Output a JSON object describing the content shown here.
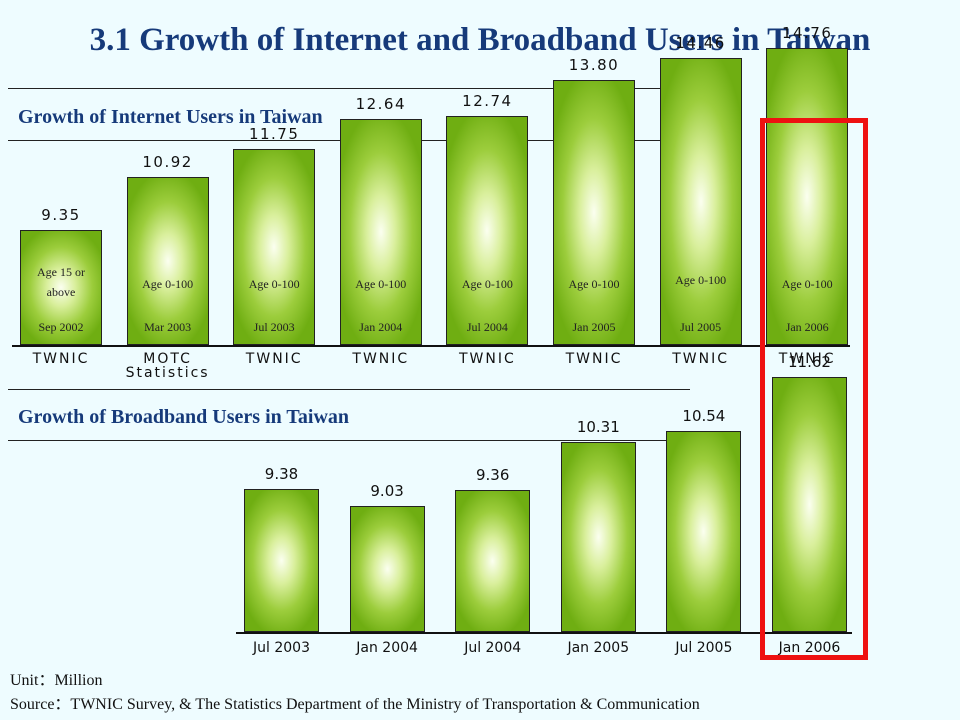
{
  "title": "3.1 Growth of Internet and Broadband Users in Taiwan",
  "chart_data": [
    {
      "type": "bar",
      "title": "Growth of Internet Users in Taiwan",
      "values": [
        9.35,
        10.92,
        11.75,
        12.64,
        12.74,
        13.8,
        14.46,
        14.76
      ],
      "value_labels": [
        "9.35",
        "10.92",
        "11.75",
        "12.64",
        "12.74",
        "13.80",
        "14.46",
        "14.76"
      ],
      "ages": [
        "Age 15 or above",
        "Age 0-100",
        "Age 0-100",
        "Age 0-100",
        "Age 0-100",
        "Age 0-100",
        "Age 0-100",
        "Age 0-100"
      ],
      "categories": [
        "Sep 2002",
        "Mar 2003",
        "Jul 2003",
        "Jan 2004",
        "Jul 2004",
        "Jan 2005",
        "Jul 2005",
        "Jan 2006"
      ],
      "sources": [
        "TWNIC",
        "MOTC Statistics",
        "TWNIC",
        "TWNIC",
        "TWNIC",
        "TWNIC",
        "TWNIC",
        "TWNIC"
      ]
    },
    {
      "type": "bar",
      "title": "Growth of Broadband Users in Taiwan",
      "values": [
        9.38,
        9.03,
        9.36,
        10.31,
        10.54,
        11.62
      ],
      "value_labels": [
        "9.38",
        "9.03",
        "9.36",
        "10.31",
        "10.54",
        "11.62"
      ],
      "categories": [
        "Jul 2003",
        "Jan 2004",
        "Jul 2004",
        "Jan 2005",
        "Jul 2005",
        "Jan 2006"
      ]
    }
  ],
  "highlight": {
    "category": "Jan 2006",
    "color": "#ee1111"
  },
  "colors": {
    "bar_dark": "#6fae12",
    "bar_light": "#fbfff0",
    "title": "#163a7a",
    "background": "#eefcff"
  },
  "footer": {
    "unit": "Unit：Million",
    "source": "Source：TWNIC Survey, & The Statistics Department of the Ministry of Transportation & Communication"
  }
}
